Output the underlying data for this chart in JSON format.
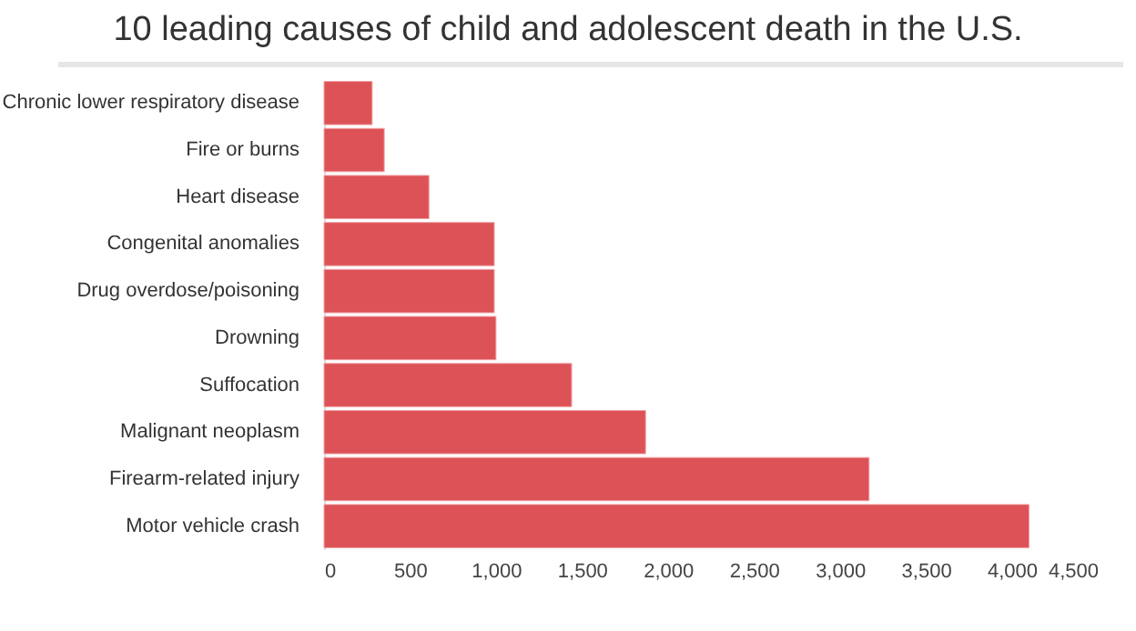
{
  "chart_data": {
    "type": "bar",
    "title": "10 leading causes of child and adolescent death in the U.S.",
    "orientation": "horizontal",
    "categories": [
      "Chronic lower respiratory disease",
      "Fire or burns",
      "Heart disease",
      "Congenital anomalies",
      "Drug overdose/poisoning",
      "Drowning",
      "Suffocation",
      "Malignant neoplasm",
      "Firearm-related injury",
      "Motor vehicle crash"
    ],
    "values": [
      280,
      350,
      610,
      990,
      990,
      1000,
      1440,
      1870,
      3170,
      4100
    ],
    "color": "#dc5257",
    "xlim": [
      0,
      4500
    ],
    "xticks": [
      0,
      {
        "value": 500,
        "label": "500"
      },
      {
        "value": 1000,
        "label": "1,000"
      },
      {
        "value": 1500,
        "label": "1,500"
      },
      {
        "value": 2000,
        "label": "2,000"
      },
      {
        "value": 2500,
        "label": "2,500"
      },
      {
        "value": 3000,
        "label": "3,000"
      },
      {
        "value": 3500,
        "label": "3,500"
      },
      {
        "value": 4000,
        "label": "4,000"
      },
      {
        "value": 4500,
        "label": "4,500"
      }
    ],
    "grid": false
  }
}
